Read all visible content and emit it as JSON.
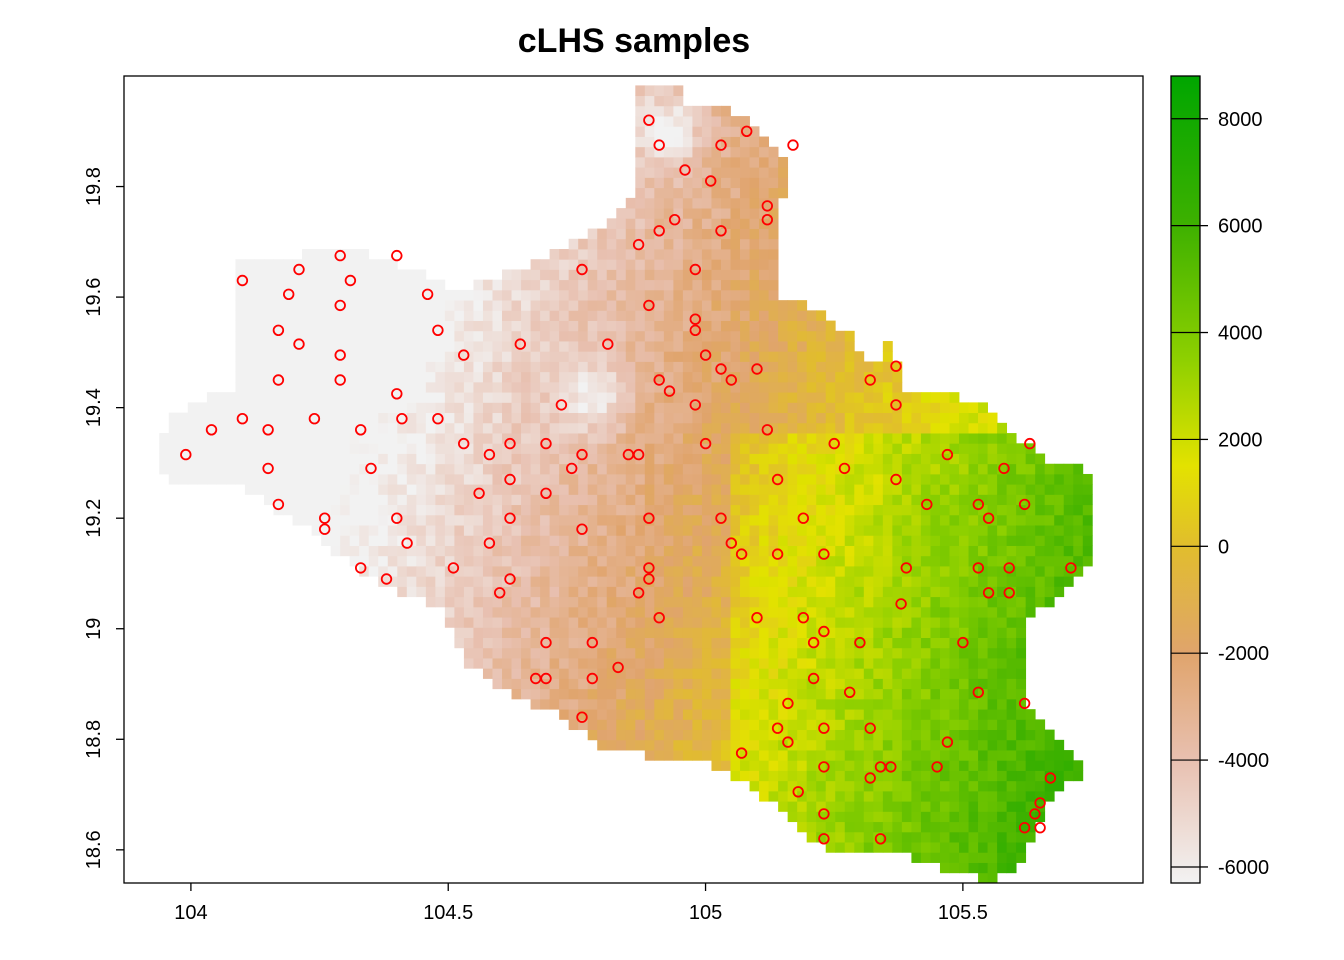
{
  "title": "cLHS samples",
  "map": {
    "x_ticks": [
      {
        "value": 104,
        "label": "104"
      },
      {
        "value": 104.5,
        "label": "104.5"
      },
      {
        "value": 105,
        "label": "105"
      },
      {
        "value": 105.5,
        "label": "105.5"
      }
    ],
    "y_ticks": [
      {
        "value": 18.6,
        "label": "18.6"
      },
      {
        "value": 18.8,
        "label": "18.8"
      },
      {
        "value": 19.0,
        "label": "19"
      },
      {
        "value": 19.2,
        "label": "19.2"
      },
      {
        "value": 19.4,
        "label": "19.4"
      },
      {
        "value": 19.6,
        "label": "19.6"
      },
      {
        "value": 19.8,
        "label": "19.8"
      }
    ],
    "x_range": [
      103.87,
      105.85
    ],
    "y_range": [
      18.54,
      20.0
    ],
    "marker_color": "#ff0000",
    "sample_points": [
      [
        104.89,
        19.92
      ],
      [
        104.91,
        19.875
      ],
      [
        105.08,
        19.9
      ],
      [
        105.03,
        19.875
      ],
      [
        105.17,
        19.875
      ],
      [
        104.96,
        19.83
      ],
      [
        105.01,
        19.81
      ],
      [
        105.12,
        19.765
      ],
      [
        105.12,
        19.74
      ],
      [
        104.94,
        19.74
      ],
      [
        104.91,
        19.72
      ],
      [
        105.03,
        19.72
      ],
      [
        104.87,
        19.695
      ],
      [
        104.1,
        19.63
      ],
      [
        104.21,
        19.65
      ],
      [
        104.29,
        19.675
      ],
      [
        104.31,
        19.63
      ],
      [
        104.4,
        19.675
      ],
      [
        104.19,
        19.605
      ],
      [
        104.29,
        19.585
      ],
      [
        104.46,
        19.605
      ],
      [
        104.76,
        19.65
      ],
      [
        104.98,
        19.65
      ],
      [
        104.89,
        19.585
      ],
      [
        104.98,
        19.56
      ],
      [
        104.98,
        19.54
      ],
      [
        104.17,
        19.54
      ],
      [
        104.21,
        19.515
      ],
      [
        104.29,
        19.495
      ],
      [
        104.48,
        19.54
      ],
      [
        104.53,
        19.495
      ],
      [
        104.64,
        19.515
      ],
      [
        104.81,
        19.515
      ],
      [
        105.0,
        19.495
      ],
      [
        105.03,
        19.47
      ],
      [
        105.1,
        19.47
      ],
      [
        105.05,
        19.45
      ],
      [
        104.91,
        19.45
      ],
      [
        104.93,
        19.43
      ],
      [
        105.32,
        19.45
      ],
      [
        105.37,
        19.475
      ],
      [
        104.17,
        19.45
      ],
      [
        104.29,
        19.45
      ],
      [
        104.4,
        19.425
      ],
      [
        104.1,
        19.38
      ],
      [
        104.24,
        19.38
      ],
      [
        104.41,
        19.38
      ],
      [
        104.48,
        19.38
      ],
      [
        104.72,
        19.405
      ],
      [
        104.98,
        19.405
      ],
      [
        105.37,
        19.405
      ],
      [
        104.04,
        19.36
      ],
      [
        104.15,
        19.36
      ],
      [
        104.33,
        19.36
      ],
      [
        105.12,
        19.36
      ],
      [
        103.99,
        19.315
      ],
      [
        104.53,
        19.335
      ],
      [
        104.62,
        19.335
      ],
      [
        104.69,
        19.335
      ],
      [
        105.0,
        19.335
      ],
      [
        104.58,
        19.315
      ],
      [
        104.76,
        19.315
      ],
      [
        104.85,
        19.315
      ],
      [
        104.87,
        19.315
      ],
      [
        105.25,
        19.335
      ],
      [
        105.47,
        19.315
      ],
      [
        105.63,
        19.335
      ],
      [
        104.15,
        19.29
      ],
      [
        104.35,
        19.29
      ],
      [
        104.74,
        19.29
      ],
      [
        105.27,
        19.29
      ],
      [
        105.58,
        19.29
      ],
      [
        104.62,
        19.27
      ],
      [
        105.14,
        19.27
      ],
      [
        105.37,
        19.27
      ],
      [
        104.56,
        19.245
      ],
      [
        104.69,
        19.245
      ],
      [
        104.17,
        19.225
      ],
      [
        104.26,
        19.2
      ],
      [
        104.4,
        19.2
      ],
      [
        104.62,
        19.2
      ],
      [
        104.89,
        19.2
      ],
      [
        105.03,
        19.2
      ],
      [
        105.19,
        19.2
      ],
      [
        105.43,
        19.225
      ],
      [
        105.53,
        19.225
      ],
      [
        105.55,
        19.2
      ],
      [
        105.62,
        19.225
      ],
      [
        104.26,
        19.18
      ],
      [
        104.76,
        19.18
      ],
      [
        104.42,
        19.155
      ],
      [
        104.58,
        19.155
      ],
      [
        105.05,
        19.155
      ],
      [
        105.07,
        19.135
      ],
      [
        105.14,
        19.135
      ],
      [
        105.23,
        19.135
      ],
      [
        104.33,
        19.11
      ],
      [
        104.51,
        19.11
      ],
      [
        104.89,
        19.11
      ],
      [
        105.39,
        19.11
      ],
      [
        105.53,
        19.11
      ],
      [
        105.59,
        19.11
      ],
      [
        105.71,
        19.11
      ],
      [
        104.38,
        19.09
      ],
      [
        104.62,
        19.09
      ],
      [
        104.89,
        19.09
      ],
      [
        104.6,
        19.065
      ],
      [
        104.87,
        19.065
      ],
      [
        105.55,
        19.065
      ],
      [
        105.59,
        19.065
      ],
      [
        105.38,
        19.045
      ],
      [
        104.91,
        19.02
      ],
      [
        105.1,
        19.02
      ],
      [
        105.19,
        19.02
      ],
      [
        105.23,
        18.995
      ],
      [
        104.69,
        18.975
      ],
      [
        104.78,
        18.975
      ],
      [
        105.21,
        18.975
      ],
      [
        105.3,
        18.975
      ],
      [
        105.5,
        18.975
      ],
      [
        104.83,
        18.93
      ],
      [
        104.67,
        18.91
      ],
      [
        104.69,
        18.91
      ],
      [
        104.78,
        18.91
      ],
      [
        105.21,
        18.91
      ],
      [
        105.28,
        18.885
      ],
      [
        105.53,
        18.885
      ],
      [
        105.62,
        18.865
      ],
      [
        104.76,
        18.84
      ],
      [
        105.16,
        18.865
      ],
      [
        105.14,
        18.82
      ],
      [
        105.23,
        18.82
      ],
      [
        105.32,
        18.82
      ],
      [
        105.16,
        18.795
      ],
      [
        105.47,
        18.795
      ],
      [
        105.07,
        18.775
      ],
      [
        105.23,
        18.75
      ],
      [
        105.34,
        18.75
      ],
      [
        105.36,
        18.75
      ],
      [
        105.45,
        18.75
      ],
      [
        105.32,
        18.73
      ],
      [
        105.67,
        18.73
      ],
      [
        105.18,
        18.705
      ],
      [
        105.65,
        18.685
      ],
      [
        105.23,
        18.665
      ],
      [
        105.64,
        18.665
      ],
      [
        105.62,
        18.64
      ],
      [
        105.65,
        18.64
      ],
      [
        105.23,
        18.62
      ],
      [
        105.34,
        18.62
      ]
    ]
  },
  "legend": {
    "range": [
      -6300,
      8800
    ],
    "tick_labels": [
      {
        "value": 8000,
        "label": "8000"
      },
      {
        "value": 6000,
        "label": "6000"
      },
      {
        "value": 4000,
        "label": "4000"
      },
      {
        "value": 2000,
        "label": "2000"
      },
      {
        "value": 0,
        "label": "0"
      },
      {
        "value": -2000,
        "label": "-2000"
      },
      {
        "value": -4000,
        "label": "-4000"
      },
      {
        "value": -6000,
        "label": "-6000"
      }
    ],
    "color_stops": [
      {
        "value": -6300,
        "color": "#f2f2f2"
      },
      {
        "value": -4000,
        "color": "#e8c0b0"
      },
      {
        "value": -2000,
        "color": "#e0a46c"
      },
      {
        "value": 0,
        "color": "#e1bd2d"
      },
      {
        "value": 1500,
        "color": "#e3e200"
      },
      {
        "value": 3500,
        "color": "#8ed000"
      },
      {
        "value": 6000,
        "color": "#3eb100"
      },
      {
        "value": 8800,
        "color": "#00a600"
      }
    ]
  }
}
